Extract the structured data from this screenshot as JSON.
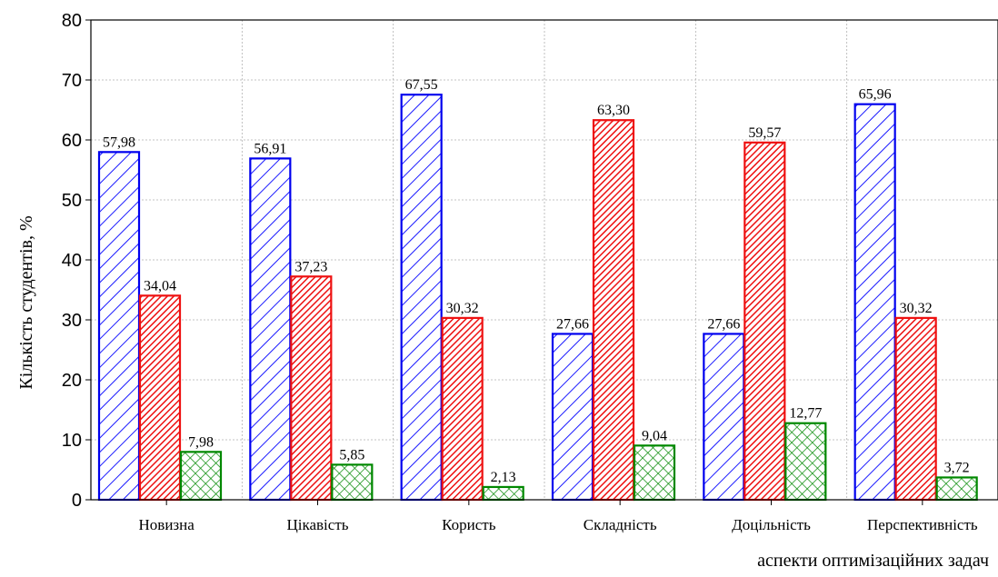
{
  "chart_data": {
    "type": "bar",
    "categories": [
      "Новизна",
      "Цікавість",
      "Користь",
      "Складність",
      "Доцільність",
      "Перспективність"
    ],
    "series": [
      {
        "values": [
          57.98,
          56.91,
          67.55,
          27.66,
          27.66,
          65.96
        ],
        "labels": [
          "57,98",
          "56,91",
          "67,55",
          "27,66",
          "27,66",
          "65,96"
        ],
        "color": "#0000ee",
        "pattern": "diagonal-hatch"
      },
      {
        "values": [
          34.04,
          37.23,
          30.32,
          63.3,
          59.57,
          30.32
        ],
        "labels": [
          "34,04",
          "37,23",
          "30,32",
          "63,30",
          "59,57",
          "30,32"
        ],
        "color": "#ee1111",
        "pattern": "dense-diagonal-hatch"
      },
      {
        "values": [
          7.98,
          5.85,
          2.13,
          9.04,
          12.77,
          3.72
        ],
        "labels": [
          "7,98",
          "5,85",
          "2,13",
          "9,04",
          "12,77",
          "3,72"
        ],
        "color": "#008800",
        "pattern": "crosshatch"
      }
    ],
    "ylim": [
      0,
      80
    ],
    "yticks": [
      0,
      10,
      20,
      30,
      40,
      50,
      60,
      70,
      80
    ],
    "ylabel": "Кількість студентів, %",
    "xlabel": "аспекти оптимізаційних задач",
    "title": "",
    "grid": true,
    "legend": "none"
  }
}
